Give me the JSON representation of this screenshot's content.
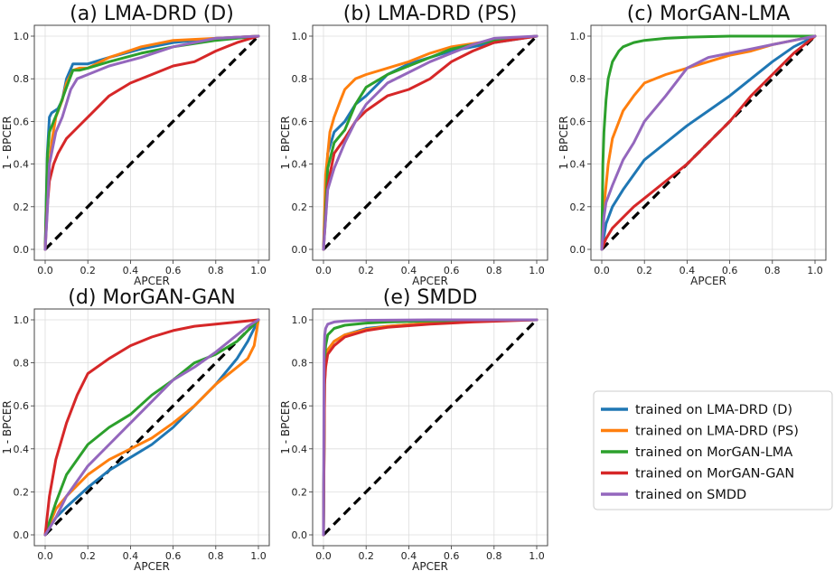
{
  "figure_name": "roc-curves-figure",
  "colors": {
    "LMA-DRD (D)": "#1f77b4",
    "LMA-DRD (PS)": "#ff7f0e",
    "MorGAN-LMA": "#2ca02c",
    "MorGAN-GAN": "#d62728",
    "SMDD": "#9467bd",
    "chance": "#000000"
  },
  "legend": {
    "position": "lower-right",
    "entries": [
      "trained on LMA-DRD (D)",
      "trained on LMA-DRD (PS)",
      "trained on MorGAN-LMA",
      "trained on MorGAN-GAN",
      "trained on SMDD"
    ]
  },
  "chart_data": [
    {
      "type": "line",
      "title": "(a) LMA-DRD (D)",
      "xlabel": "APCER",
      "ylabel": "1 - BPCER",
      "xlim": [
        0,
        1
      ],
      "ylim": [
        0,
        1
      ],
      "xticks": [
        "0.0",
        "0.2",
        "0.4",
        "0.6",
        "0.8",
        "1.0"
      ],
      "yticks": [
        "0.0",
        "0.2",
        "0.4",
        "0.6",
        "0.8",
        "1.0"
      ],
      "grid": true,
      "chance_line": true,
      "series": [
        {
          "name": "LMA-DRD (D)",
          "x": [
            0,
            0.01,
            0.02,
            0.03,
            0.06,
            0.08,
            0.1,
            0.13,
            0.15,
            0.2,
            0.3,
            0.45,
            0.6,
            0.8,
            1.0
          ],
          "y": [
            0,
            0.45,
            0.62,
            0.64,
            0.66,
            0.7,
            0.8,
            0.87,
            0.87,
            0.87,
            0.9,
            0.94,
            0.97,
            0.99,
            1.0
          ]
        },
        {
          "name": "LMA-DRD (PS)",
          "x": [
            0,
            0.01,
            0.03,
            0.05,
            0.08,
            0.1,
            0.13,
            0.16,
            0.2,
            0.3,
            0.45,
            0.6,
            0.8,
            1.0
          ],
          "y": [
            0,
            0.3,
            0.5,
            0.62,
            0.7,
            0.78,
            0.84,
            0.85,
            0.85,
            0.9,
            0.95,
            0.98,
            0.99,
            1.0
          ]
        },
        {
          "name": "MorGAN-LMA",
          "x": [
            0,
            0.01,
            0.02,
            0.04,
            0.06,
            0.1,
            0.13,
            0.16,
            0.2,
            0.3,
            0.45,
            0.6,
            0.8,
            1.0
          ],
          "y": [
            0,
            0.43,
            0.55,
            0.6,
            0.65,
            0.76,
            0.84,
            0.84,
            0.85,
            0.88,
            0.92,
            0.95,
            0.98,
            1.0
          ]
        },
        {
          "name": "MorGAN-GAN",
          "x": [
            0,
            0.01,
            0.02,
            0.04,
            0.06,
            0.1,
            0.15,
            0.2,
            0.3,
            0.4,
            0.5,
            0.6,
            0.7,
            0.8,
            0.9,
            1.0
          ],
          "y": [
            0,
            0.2,
            0.32,
            0.4,
            0.45,
            0.52,
            0.57,
            0.62,
            0.72,
            0.78,
            0.82,
            0.86,
            0.88,
            0.93,
            0.97,
            1.0
          ]
        },
        {
          "name": "SMDD",
          "x": [
            0,
            0.01,
            0.02,
            0.05,
            0.08,
            0.12,
            0.15,
            0.2,
            0.3,
            0.45,
            0.6,
            0.8,
            1.0
          ],
          "y": [
            0,
            0.18,
            0.4,
            0.55,
            0.62,
            0.75,
            0.8,
            0.82,
            0.86,
            0.9,
            0.95,
            0.99,
            1.0
          ]
        }
      ]
    },
    {
      "type": "line",
      "title": "(b) LMA-DRD (PS)",
      "xlabel": "APCER",
      "ylabel": "1 - BPCER",
      "xlim": [
        0,
        1
      ],
      "ylim": [
        0,
        1
      ],
      "xticks": [
        "0.0",
        "0.2",
        "0.4",
        "0.6",
        "0.8",
        "1.0"
      ],
      "yticks": [
        "0.0",
        "0.2",
        "0.4",
        "0.6",
        "0.8",
        "1.0"
      ],
      "grid": true,
      "chance_line": true,
      "series": [
        {
          "name": "LMA-DRD (D)",
          "x": [
            0,
            0.02,
            0.05,
            0.1,
            0.15,
            0.2,
            0.3,
            0.4,
            0.5,
            0.6,
            0.8,
            1.0
          ],
          "y": [
            0,
            0.45,
            0.55,
            0.6,
            0.68,
            0.72,
            0.82,
            0.87,
            0.9,
            0.93,
            0.97,
            1.0
          ]
        },
        {
          "name": "LMA-DRD (PS)",
          "x": [
            0,
            0.01,
            0.03,
            0.05,
            0.08,
            0.1,
            0.15,
            0.2,
            0.3,
            0.4,
            0.5,
            0.6,
            0.8,
            1.0
          ],
          "y": [
            0,
            0.35,
            0.55,
            0.62,
            0.7,
            0.75,
            0.8,
            0.82,
            0.85,
            0.88,
            0.92,
            0.95,
            0.98,
            1.0
          ]
        },
        {
          "name": "MorGAN-LMA",
          "x": [
            0,
            0.02,
            0.05,
            0.1,
            0.15,
            0.2,
            0.3,
            0.4,
            0.5,
            0.6,
            0.8,
            1.0
          ],
          "y": [
            0,
            0.38,
            0.5,
            0.56,
            0.68,
            0.76,
            0.82,
            0.86,
            0.9,
            0.94,
            0.98,
            1.0
          ]
        },
        {
          "name": "MorGAN-GAN",
          "x": [
            0,
            0.02,
            0.05,
            0.1,
            0.15,
            0.2,
            0.3,
            0.4,
            0.5,
            0.6,
            0.7,
            0.8,
            1.0
          ],
          "y": [
            0,
            0.3,
            0.45,
            0.52,
            0.6,
            0.65,
            0.72,
            0.75,
            0.8,
            0.88,
            0.93,
            0.97,
            1.0
          ]
        },
        {
          "name": "SMDD",
          "x": [
            0,
            0.02,
            0.05,
            0.1,
            0.15,
            0.2,
            0.3,
            0.4,
            0.5,
            0.6,
            0.7,
            0.8,
            1.0
          ],
          "y": [
            0,
            0.28,
            0.38,
            0.5,
            0.6,
            0.68,
            0.78,
            0.83,
            0.88,
            0.92,
            0.96,
            0.99,
            1.0
          ]
        }
      ]
    },
    {
      "type": "line",
      "title": "(c) MorGAN-LMA",
      "xlabel": "APCER",
      "ylabel": "1 - BPCER",
      "xlim": [
        0,
        1
      ],
      "ylim": [
        0,
        1
      ],
      "xticks": [
        "0.0",
        "0.2",
        "0.4",
        "0.6",
        "0.8",
        "1.0"
      ],
      "yticks": [
        "0.0",
        "0.2",
        "0.4",
        "0.6",
        "0.8",
        "1.0"
      ],
      "grid": true,
      "chance_line": true,
      "series": [
        {
          "name": "LMA-DRD (D)",
          "x": [
            0,
            0.02,
            0.05,
            0.1,
            0.15,
            0.2,
            0.3,
            0.4,
            0.5,
            0.6,
            0.7,
            0.8,
            0.9,
            1.0
          ],
          "y": [
            0,
            0.12,
            0.2,
            0.28,
            0.35,
            0.42,
            0.5,
            0.58,
            0.65,
            0.72,
            0.8,
            0.88,
            0.95,
            1.0
          ]
        },
        {
          "name": "LMA-DRD (PS)",
          "x": [
            0,
            0.01,
            0.03,
            0.05,
            0.1,
            0.15,
            0.2,
            0.3,
            0.4,
            0.5,
            0.6,
            0.7,
            0.8,
            0.9,
            1.0
          ],
          "y": [
            0,
            0.2,
            0.4,
            0.52,
            0.65,
            0.72,
            0.78,
            0.82,
            0.85,
            0.88,
            0.91,
            0.93,
            0.96,
            0.98,
            1.0
          ]
        },
        {
          "name": "MorGAN-LMA",
          "x": [
            0,
            0.005,
            0.01,
            0.02,
            0.03,
            0.05,
            0.08,
            0.1,
            0.15,
            0.2,
            0.3,
            0.4,
            0.6,
            0.8,
            1.0
          ],
          "y": [
            0,
            0.4,
            0.55,
            0.7,
            0.8,
            0.88,
            0.93,
            0.95,
            0.97,
            0.98,
            0.99,
            0.995,
            1.0,
            1.0,
            1.0
          ]
        },
        {
          "name": "MorGAN-GAN",
          "x": [
            0,
            0.02,
            0.05,
            0.1,
            0.15,
            0.2,
            0.3,
            0.4,
            0.5,
            0.6,
            0.7,
            0.8,
            0.9,
            1.0
          ],
          "y": [
            0,
            0.05,
            0.1,
            0.15,
            0.2,
            0.24,
            0.32,
            0.4,
            0.5,
            0.6,
            0.72,
            0.82,
            0.92,
            1.0
          ]
        },
        {
          "name": "SMDD",
          "x": [
            0,
            0.01,
            0.02,
            0.05,
            0.1,
            0.15,
            0.2,
            0.3,
            0.4,
            0.5,
            0.6,
            0.7,
            0.8,
            0.9,
            1.0
          ],
          "y": [
            0,
            0.15,
            0.22,
            0.3,
            0.42,
            0.5,
            0.6,
            0.72,
            0.85,
            0.9,
            0.92,
            0.94,
            0.96,
            0.98,
            1.0
          ]
        }
      ]
    },
    {
      "type": "line",
      "title": "(d) MorGAN-GAN",
      "xlabel": "APCER",
      "ylabel": "1 - BPCER",
      "xlim": [
        0,
        1
      ],
      "ylim": [
        0,
        1
      ],
      "xticks": [
        "0.0",
        "0.2",
        "0.4",
        "0.6",
        "0.8",
        "1.0"
      ],
      "yticks": [
        "0.0",
        "0.2",
        "0.4",
        "0.6",
        "0.8",
        "1.0"
      ],
      "grid": true,
      "chance_line": true,
      "series": [
        {
          "name": "LMA-DRD (D)",
          "x": [
            0,
            0.05,
            0.1,
            0.2,
            0.3,
            0.4,
            0.5,
            0.6,
            0.7,
            0.8,
            0.9,
            0.95,
            1.0
          ],
          "y": [
            0,
            0.08,
            0.13,
            0.22,
            0.3,
            0.36,
            0.42,
            0.5,
            0.6,
            0.7,
            0.82,
            0.9,
            1.0
          ]
        },
        {
          "name": "LMA-DRD (PS)",
          "x": [
            0,
            0.05,
            0.1,
            0.2,
            0.3,
            0.4,
            0.5,
            0.6,
            0.7,
            0.8,
            0.9,
            0.95,
            0.98,
            1.0
          ],
          "y": [
            0,
            0.12,
            0.18,
            0.28,
            0.35,
            0.4,
            0.45,
            0.52,
            0.6,
            0.7,
            0.78,
            0.82,
            0.88,
            1.0
          ]
        },
        {
          "name": "MorGAN-LMA",
          "x": [
            0,
            0.05,
            0.1,
            0.2,
            0.3,
            0.4,
            0.5,
            0.6,
            0.7,
            0.8,
            0.9,
            0.95,
            1.0
          ],
          "y": [
            0,
            0.15,
            0.28,
            0.42,
            0.5,
            0.56,
            0.65,
            0.72,
            0.8,
            0.84,
            0.9,
            0.95,
            1.0
          ]
        },
        {
          "name": "MorGAN-GAN",
          "x": [
            0,
            0.02,
            0.05,
            0.1,
            0.15,
            0.2,
            0.3,
            0.4,
            0.5,
            0.6,
            0.7,
            0.8,
            0.9,
            1.0
          ],
          "y": [
            0,
            0.18,
            0.35,
            0.52,
            0.65,
            0.75,
            0.82,
            0.88,
            0.92,
            0.95,
            0.97,
            0.98,
            0.99,
            1.0
          ]
        },
        {
          "name": "SMDD",
          "x": [
            0,
            0.05,
            0.1,
            0.2,
            0.3,
            0.4,
            0.5,
            0.6,
            0.7,
            0.8,
            0.9,
            0.95,
            1.0
          ],
          "y": [
            0,
            0.08,
            0.18,
            0.32,
            0.42,
            0.52,
            0.62,
            0.72,
            0.78,
            0.85,
            0.93,
            0.97,
            1.0
          ]
        }
      ]
    },
    {
      "type": "line",
      "title": "(e) SMDD",
      "xlabel": "APCER",
      "ylabel": "1 - BPCER",
      "xlim": [
        0,
        1
      ],
      "ylim": [
        0,
        1
      ],
      "xticks": [
        "0.0",
        "0.2",
        "0.4",
        "0.6",
        "0.8",
        "1.0"
      ],
      "yticks": [
        "0.0",
        "0.2",
        "0.4",
        "0.6",
        "0.8",
        "1.0"
      ],
      "grid": true,
      "chance_line": true,
      "series": [
        {
          "name": "LMA-DRD (D)",
          "x": [
            0,
            0.005,
            0.01,
            0.02,
            0.05,
            0.1,
            0.2,
            0.3,
            0.5,
            0.7,
            1.0
          ],
          "y": [
            0,
            0.72,
            0.8,
            0.86,
            0.9,
            0.93,
            0.96,
            0.97,
            0.985,
            0.995,
            1.0
          ]
        },
        {
          "name": "LMA-DRD (PS)",
          "x": [
            0,
            0.005,
            0.01,
            0.02,
            0.05,
            0.1,
            0.2,
            0.3,
            0.5,
            0.7,
            1.0
          ],
          "y": [
            0,
            0.7,
            0.8,
            0.86,
            0.9,
            0.93,
            0.955,
            0.97,
            0.985,
            0.995,
            1.0
          ]
        },
        {
          "name": "MorGAN-LMA",
          "x": [
            0,
            0.005,
            0.01,
            0.02,
            0.05,
            0.1,
            0.2,
            0.3,
            0.5,
            0.7,
            1.0
          ],
          "y": [
            0,
            0.8,
            0.88,
            0.93,
            0.96,
            0.975,
            0.985,
            0.99,
            0.995,
            0.998,
            1.0
          ]
        },
        {
          "name": "MorGAN-GAN",
          "x": [
            0,
            0.005,
            0.01,
            0.02,
            0.05,
            0.1,
            0.2,
            0.3,
            0.5,
            0.7,
            1.0
          ],
          "y": [
            0,
            0.7,
            0.78,
            0.84,
            0.88,
            0.92,
            0.95,
            0.965,
            0.98,
            0.99,
            1.0
          ]
        },
        {
          "name": "SMDD",
          "x": [
            0,
            0.003,
            0.006,
            0.01,
            0.02,
            0.05,
            0.1,
            0.2,
            0.5,
            1.0
          ],
          "y": [
            0,
            0.85,
            0.93,
            0.96,
            0.98,
            0.99,
            0.995,
            0.998,
            1.0,
            1.0
          ]
        }
      ]
    }
  ]
}
